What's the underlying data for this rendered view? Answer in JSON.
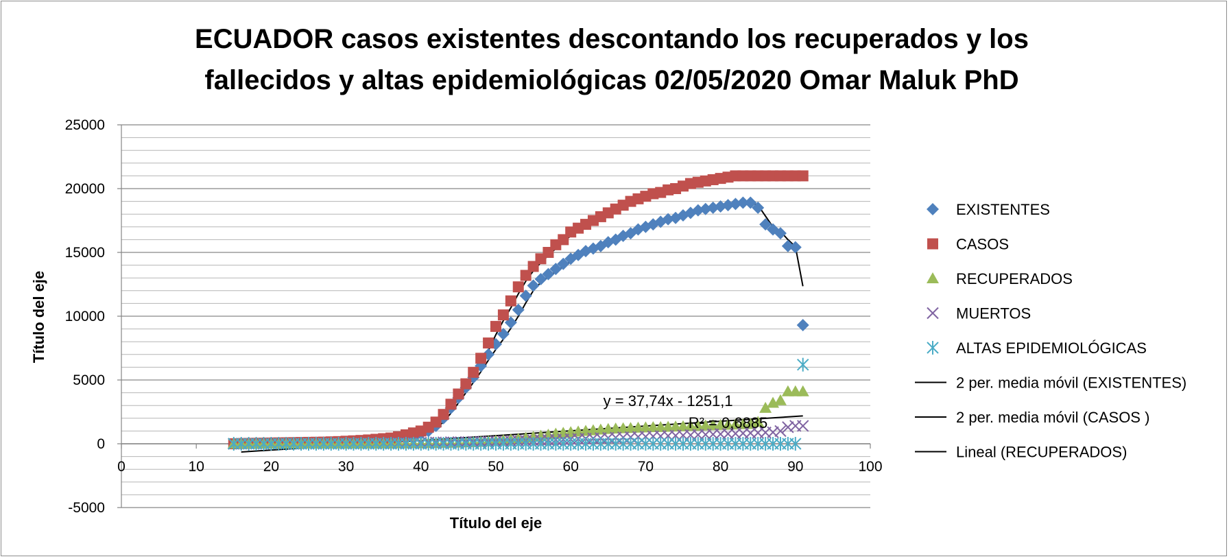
{
  "chart_data": {
    "type": "scatter",
    "title_lines": [
      "ECUADOR casos existentes descontando los recuperados y los",
      "fallecidos y altas epidemiológicas   02/05/2020  Omar Maluk  PhD"
    ],
    "xlabel": "Título del eje",
    "ylabel": "Título del eje",
    "xlim": [
      0,
      100
    ],
    "ylim": [
      -5000,
      25000
    ],
    "x_ticks": [
      0,
      10,
      20,
      30,
      40,
      50,
      60,
      70,
      80,
      90,
      100
    ],
    "y_ticks": [
      -5000,
      0,
      5000,
      10000,
      15000,
      20000,
      25000
    ],
    "y_minor_step": 1000,
    "grid": true,
    "legend_position": "right",
    "series": [
      {
        "name": "EXISTENTES",
        "marker": "diamond",
        "color": "#4F81BD",
        "x": [
          15,
          16,
          17,
          18,
          19,
          20,
          21,
          22,
          23,
          24,
          25,
          26,
          27,
          28,
          29,
          30,
          31,
          32,
          33,
          34,
          35,
          36,
          37,
          38,
          39,
          40,
          41,
          42,
          43,
          44,
          45,
          46,
          47,
          48,
          49,
          50,
          51,
          52,
          53,
          54,
          55,
          56,
          57,
          58,
          59,
          60,
          61,
          62,
          63,
          64,
          65,
          66,
          67,
          68,
          69,
          70,
          71,
          72,
          73,
          74,
          75,
          76,
          77,
          78,
          79,
          80,
          81,
          82,
          83,
          84,
          85,
          86,
          87,
          88,
          89,
          90,
          91
        ],
        "y": [
          0,
          10,
          15,
          20,
          25,
          30,
          40,
          50,
          60,
          70,
          80,
          90,
          100,
          110,
          120,
          140,
          160,
          190,
          220,
          260,
          300,
          350,
          420,
          520,
          650,
          800,
          1000,
          1400,
          2000,
          2800,
          3600,
          4400,
          5200,
          6100,
          7000,
          7800,
          8600,
          9500,
          10500,
          11600,
          12400,
          12900,
          13300,
          13700,
          14100,
          14500,
          14800,
          15100,
          15300,
          15500,
          15800,
          16000,
          16300,
          16500,
          16800,
          17000,
          17200,
          17400,
          17600,
          17700,
          17900,
          18100,
          18300,
          18400,
          18500,
          18600,
          18700,
          18800,
          18900,
          18900,
          18500,
          17200,
          16800,
          16500,
          15500,
          15400,
          9300
        ]
      },
      {
        "name": "CASOS",
        "marker": "square",
        "color": "#C0504D",
        "x": [
          15,
          16,
          17,
          18,
          19,
          20,
          21,
          22,
          23,
          24,
          25,
          26,
          27,
          28,
          29,
          30,
          31,
          32,
          33,
          34,
          35,
          36,
          37,
          38,
          39,
          40,
          41,
          42,
          43,
          44,
          45,
          46,
          47,
          48,
          49,
          50,
          51,
          52,
          53,
          54,
          55,
          56,
          57,
          58,
          59,
          60,
          61,
          62,
          63,
          64,
          65,
          66,
          67,
          68,
          69,
          70,
          71,
          72,
          73,
          74,
          75,
          76,
          77,
          78,
          79,
          80,
          81,
          82,
          83,
          84,
          85,
          86,
          87,
          88,
          89,
          90,
          91
        ],
        "y": [
          0,
          20,
          30,
          40,
          50,
          60,
          70,
          80,
          90,
          100,
          110,
          120,
          130,
          150,
          170,
          200,
          230,
          260,
          300,
          350,
          400,
          450,
          550,
          700,
          850,
          1000,
          1300,
          1700,
          2300,
          3100,
          3900,
          4700,
          5600,
          6700,
          7900,
          9200,
          10100,
          11200,
          12300,
          13200,
          13900,
          14500,
          15000,
          15600,
          16000,
          16600,
          16900,
          17200,
          17500,
          17800,
          18100,
          18400,
          18700,
          19000,
          19200,
          19400,
          19600,
          19700,
          19900,
          20000,
          20200,
          20400,
          20500,
          20600,
          20700,
          20800,
          20900,
          21000,
          21000,
          21000,
          21000,
          21000,
          21000,
          21000,
          21000,
          21000,
          21000
        ]
      },
      {
        "name": "RECUPERADOS",
        "marker": "triangle",
        "color": "#9BBB59",
        "x": [
          15,
          16,
          17,
          18,
          19,
          20,
          21,
          22,
          23,
          24,
          25,
          26,
          27,
          28,
          29,
          30,
          31,
          32,
          33,
          34,
          35,
          36,
          37,
          38,
          39,
          40,
          41,
          42,
          43,
          44,
          45,
          46,
          47,
          48,
          49,
          50,
          51,
          52,
          53,
          54,
          55,
          56,
          57,
          58,
          59,
          60,
          61,
          62,
          63,
          64,
          65,
          66,
          67,
          68,
          69,
          70,
          71,
          72,
          73,
          74,
          75,
          76,
          77,
          78,
          79,
          80,
          81,
          82,
          83,
          84,
          85,
          86,
          87,
          88,
          89,
          90,
          91
        ],
        "y": [
          0,
          0,
          0,
          0,
          0,
          0,
          0,
          0,
          0,
          0,
          0,
          0,
          0,
          0,
          0,
          0,
          0,
          0,
          10,
          10,
          10,
          10,
          20,
          20,
          30,
          30,
          40,
          50,
          60,
          70,
          80,
          100,
          120,
          150,
          180,
          220,
          260,
          320,
          380,
          460,
          540,
          620,
          700,
          780,
          850,
          900,
          950,
          1000,
          1050,
          1100,
          1150,
          1180,
          1200,
          1220,
          1250,
          1270,
          1290,
          1300,
          1320,
          1340,
          1360,
          1380,
          1400,
          1420,
          1440,
          1460,
          1480,
          1500,
          1520,
          1540,
          1700,
          2800,
          3200,
          3400,
          4100,
          4100,
          4100
        ]
      },
      {
        "name": "MUERTOS",
        "marker": "x",
        "color": "#8064A2",
        "x": [
          15,
          16,
          17,
          18,
          19,
          20,
          21,
          22,
          23,
          24,
          25,
          26,
          27,
          28,
          29,
          30,
          31,
          32,
          33,
          34,
          35,
          36,
          37,
          38,
          39,
          40,
          41,
          42,
          43,
          44,
          45,
          46,
          47,
          48,
          49,
          50,
          51,
          52,
          53,
          54,
          55,
          56,
          57,
          58,
          59,
          60,
          61,
          62,
          63,
          64,
          65,
          66,
          67,
          68,
          69,
          70,
          71,
          72,
          73,
          74,
          75,
          76,
          77,
          78,
          79,
          80,
          81,
          82,
          83,
          84,
          85,
          86,
          87,
          88,
          89,
          90,
          91
        ],
        "y": [
          0,
          0,
          0,
          0,
          0,
          0,
          0,
          0,
          0,
          0,
          0,
          0,
          0,
          0,
          0,
          5,
          10,
          15,
          20,
          25,
          30,
          40,
          50,
          60,
          70,
          80,
          90,
          100,
          110,
          120,
          130,
          140,
          150,
          160,
          170,
          180,
          190,
          200,
          220,
          240,
          260,
          280,
          300,
          320,
          340,
          360,
          380,
          400,
          420,
          440,
          460,
          480,
          500,
          520,
          540,
          560,
          580,
          600,
          620,
          640,
          660,
          680,
          700,
          720,
          740,
          760,
          780,
          800,
          820,
          840,
          860,
          880,
          900,
          1000,
          1300,
          1400,
          1400
        ]
      },
      {
        "name": "ALTAS EPIDEMIOLÓGICAS",
        "marker": "asterisk",
        "color": "#4BACC6",
        "x": [
          15,
          16,
          17,
          18,
          19,
          20,
          21,
          22,
          23,
          24,
          25,
          26,
          27,
          28,
          29,
          30,
          31,
          32,
          33,
          34,
          35,
          36,
          37,
          38,
          39,
          40,
          41,
          42,
          43,
          44,
          45,
          46,
          47,
          48,
          49,
          50,
          51,
          52,
          53,
          54,
          55,
          56,
          57,
          58,
          59,
          60,
          61,
          62,
          63,
          64,
          65,
          66,
          67,
          68,
          69,
          70,
          71,
          72,
          73,
          74,
          75,
          76,
          77,
          78,
          79,
          80,
          81,
          82,
          83,
          84,
          85,
          86,
          87,
          88,
          89,
          90,
          91
        ],
        "y": [
          0,
          0,
          0,
          0,
          0,
          0,
          0,
          0,
          0,
          0,
          0,
          0,
          0,
          0,
          0,
          0,
          0,
          0,
          0,
          0,
          0,
          0,
          0,
          0,
          0,
          0,
          0,
          0,
          0,
          0,
          0,
          0,
          0,
          0,
          0,
          0,
          0,
          0,
          0,
          0,
          0,
          0,
          0,
          0,
          0,
          0,
          0,
          0,
          0,
          0,
          0,
          0,
          0,
          0,
          0,
          0,
          0,
          0,
          0,
          0,
          0,
          0,
          0,
          0,
          0,
          0,
          0,
          0,
          0,
          0,
          0,
          0,
          0,
          0,
          0,
          0,
          6200
        ]
      }
    ],
    "trendlines": [
      {
        "name": "2 per. media móvil (EXISTENTES)",
        "type": "moving_average",
        "period": 2,
        "of": "EXISTENTES",
        "color": "#000000"
      },
      {
        "name": "2 per. media móvil (CASOS )",
        "type": "moving_average",
        "period": 2,
        "of": "CASOS",
        "color": "#000000"
      },
      {
        "name": "Lineal (RECUPERADOS)",
        "type": "linear",
        "of": "RECUPERADOS",
        "slope": 37.74,
        "intercept": -1251.1,
        "x_range": [
          16,
          91
        ],
        "color": "#000000"
      }
    ],
    "annotations": [
      {
        "text": "y = 37,74x - 1251,1",
        "anchor_x": 73,
        "anchor_y": 2950
      },
      {
        "text": "R² = 0,6885",
        "anchor_x": 81,
        "anchor_y": 1250
      }
    ]
  }
}
